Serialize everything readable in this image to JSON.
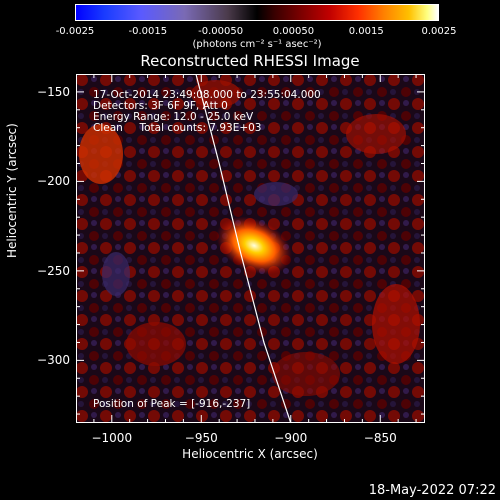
{
  "colorbar": {
    "ticks": [
      "-0.0025",
      "-0.0015",
      "-0.00050",
      "0.00050",
      "0.0015",
      "0.0025"
    ],
    "units": "(photons cm⁻² s⁻¹ asec⁻²)"
  },
  "chart_data": {
    "type": "heatmap",
    "title": "Reconstructed RHESSI Image",
    "xlabel": "Heliocentric X (arcsec)",
    "ylabel": "Heliocentric Y (arcsec)",
    "xlim": [
      -1020,
      -825
    ],
    "ylim": [
      -335,
      -140
    ],
    "x_ticks": [
      "-1000",
      "-950",
      "-900",
      "-850"
    ],
    "y_ticks": [
      "-150",
      "-200",
      "-250",
      "-300"
    ],
    "x_tick_values": [
      -1000,
      -950,
      -900,
      -850
    ],
    "y_tick_values": [
      -150,
      -200,
      -250,
      -300
    ],
    "colorbar_range": [
      -0.0025,
      0.0025
    ],
    "peak": {
      "x": -916,
      "y": -237
    },
    "limb_curve": [
      [
        -953,
        -140
      ],
      [
        -940,
        -190
      ],
      [
        -928,
        -240
      ],
      [
        -915,
        -290
      ],
      [
        -900,
        -335
      ]
    ],
    "annotations": [
      "17-Oct-2014 23:49:08.000 to 23:55:04.000",
      "Detectors: 3F 6F 9F, Att 0",
      "Energy Range: 12.0 - 25.0 keV",
      "Clean     Total counts: 7.93E+03"
    ],
    "peak_label": "Position of Peak = [-916,-237]"
  },
  "timestamp": "18-May-2022 07:22"
}
